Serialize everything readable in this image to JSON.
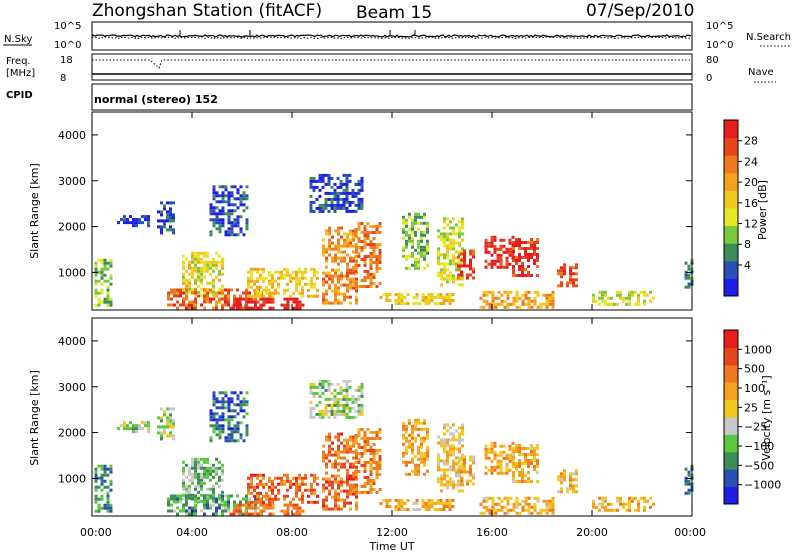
{
  "header": {
    "station": "Zhongshan Station (fitACF)",
    "beam": "Beam 15",
    "date": "07/Sep/2010"
  },
  "top_panels": {
    "nsky_label": "N.Sky",
    "nsearch_label": "N.Search",
    "nsky_ticks": [
      "10^5",
      "10^0"
    ],
    "nsearch_ticks": [
      "10^5",
      "10^0"
    ],
    "freq_label_1": "Freq.",
    "freq_label_2": "[MHz]",
    "freq_ticks": [
      "18",
      "8"
    ],
    "nave_label": "Nave",
    "nave_ticks": [
      "80",
      "0"
    ],
    "cpid_label": "CPID",
    "cpid_value": "normal (stereo) 152"
  },
  "chart_data": [
    {
      "type": "heatmap",
      "name": "power",
      "ylabel": "Slant Range [km]",
      "xlabel": "",
      "ylim": [
        180,
        4500
      ],
      "xlim": [
        0,
        24
      ],
      "yticks": [
        "1000",
        "2000",
        "3000",
        "4000"
      ],
      "ytick_values": [
        1000,
        2000,
        3000,
        4000
      ],
      "colorbar_label": "Power [dB]",
      "colorbar_ticks": [
        "4",
        "8",
        "12",
        "16",
        "20",
        "24",
        "28"
      ],
      "colorbar_colors": [
        "#1e1ee6",
        "#2850b4",
        "#3c8c5a",
        "#7ac83c",
        "#e6e628",
        "#f0c81e",
        "#f5a01e",
        "#f0781e",
        "#e6461e",
        "#e61e1e"
      ],
      "blobs": [
        {
          "t0": 0.1,
          "t1": 0.8,
          "r0": 300,
          "r1": 1300,
          "level": 0.35
        },
        {
          "t0": 1.0,
          "t1": 2.3,
          "r0": 2000,
          "r1": 2250,
          "level": 0.1
        },
        {
          "t0": 2.6,
          "t1": 3.3,
          "r0": 1850,
          "r1": 2550,
          "level": 0.12
        },
        {
          "t0": 3.6,
          "t1": 5.2,
          "r0": 500,
          "r1": 1450,
          "level": 0.5
        },
        {
          "t0": 3.0,
          "t1": 6.8,
          "r0": 250,
          "r1": 650,
          "level": 0.8
        },
        {
          "t0": 4.7,
          "t1": 6.2,
          "r0": 1800,
          "r1": 2900,
          "level": 0.15
        },
        {
          "t0": 5.5,
          "t1": 8.5,
          "r0": 200,
          "r1": 450,
          "level": 0.95
        },
        {
          "t0": 6.2,
          "t1": 9.0,
          "r0": 450,
          "r1": 1100,
          "level": 0.55
        },
        {
          "t0": 8.7,
          "t1": 10.8,
          "r0": 2300,
          "r1": 3150,
          "level": 0.12
        },
        {
          "t0": 9.2,
          "t1": 10.6,
          "r0": 300,
          "r1": 2000,
          "level": 0.7
        },
        {
          "t0": 10.5,
          "t1": 11.5,
          "r0": 700,
          "r1": 2100,
          "level": 0.75
        },
        {
          "t0": 11.5,
          "t1": 14.5,
          "r0": 300,
          "r1": 550,
          "level": 0.55
        },
        {
          "t0": 12.4,
          "t1": 13.4,
          "r0": 1100,
          "r1": 2300,
          "level": 0.35
        },
        {
          "t0": 13.8,
          "t1": 14.8,
          "r0": 700,
          "r1": 2200,
          "level": 0.45
        },
        {
          "t0": 14.6,
          "t1": 15.2,
          "r0": 850,
          "r1": 1500,
          "level": 0.9
        },
        {
          "t0": 15.7,
          "t1": 16.8,
          "r0": 1100,
          "r1": 1800,
          "level": 0.95
        },
        {
          "t0": 16.8,
          "t1": 17.8,
          "r0": 950,
          "r1": 1750,
          "level": 0.9
        },
        {
          "t0": 15.5,
          "t1": 18.5,
          "r0": 250,
          "r1": 600,
          "level": 0.65
        },
        {
          "t0": 18.6,
          "t1": 19.4,
          "r0": 700,
          "r1": 1200,
          "level": 0.85
        },
        {
          "t0": 20.0,
          "t1": 22.5,
          "r0": 300,
          "r1": 600,
          "level": 0.45
        },
        {
          "t0": 23.7,
          "t1": 24.0,
          "r0": 700,
          "r1": 1300,
          "level": 0.3
        }
      ]
    },
    {
      "type": "heatmap",
      "name": "velocity",
      "ylabel": "Slant Range [km]",
      "xlabel": "Time UT",
      "ylim": [
        180,
        4500
      ],
      "xlim": [
        0,
        24
      ],
      "yticks": [
        "1000",
        "2000",
        "3000",
        "4000"
      ],
      "ytick_values": [
        1000,
        2000,
        3000,
        4000
      ],
      "xticks": [
        "00:00",
        "04:00",
        "08:00",
        "12:00",
        "16:00",
        "20:00",
        "00:00"
      ],
      "xtick_values": [
        0,
        4,
        8,
        12,
        16,
        20,
        24
      ],
      "colorbar_label": "Velocity [m s⁻¹]",
      "colorbar_ticks": [
        "1000",
        "500",
        "100",
        "25",
        "−25",
        "−100",
        "−500",
        "−1000"
      ],
      "colorbar_colors": [
        "#1e1ee6",
        "#2850b4",
        "#3c8c5a",
        "#5ac83c",
        "#c8c8c8",
        "#f0c81e",
        "#f5a01e",
        "#f0781e",
        "#e6461e",
        "#e61e1e"
      ],
      "blobs": [
        {
          "t0": 0.1,
          "t1": 0.8,
          "r0": 300,
          "r1": 1300,
          "level": 0.25
        },
        {
          "t0": 1.0,
          "t1": 2.3,
          "r0": 2000,
          "r1": 2250,
          "level": 0.42
        },
        {
          "t0": 2.6,
          "t1": 3.3,
          "r0": 1850,
          "r1": 2550,
          "level": 0.42
        },
        {
          "t0": 3.6,
          "t1": 5.2,
          "r0": 500,
          "r1": 1450,
          "level": 0.35
        },
        {
          "t0": 3.0,
          "t1": 6.8,
          "r0": 250,
          "r1": 650,
          "level": 0.3
        },
        {
          "t0": 4.7,
          "t1": 6.2,
          "r0": 1800,
          "r1": 2900,
          "level": 0.2
        },
        {
          "t0": 5.5,
          "t1": 8.5,
          "r0": 200,
          "r1": 450,
          "level": 0.75
        },
        {
          "t0": 6.2,
          "t1": 9.0,
          "r0": 450,
          "r1": 1100,
          "level": 0.8
        },
        {
          "t0": 8.7,
          "t1": 10.8,
          "r0": 2300,
          "r1": 3150,
          "level": 0.42
        },
        {
          "t0": 9.2,
          "t1": 10.6,
          "r0": 300,
          "r1": 2000,
          "level": 0.78
        },
        {
          "t0": 10.5,
          "t1": 11.5,
          "r0": 700,
          "r1": 2100,
          "level": 0.72
        },
        {
          "t0": 11.5,
          "t1": 14.5,
          "r0": 300,
          "r1": 550,
          "level": 0.62
        },
        {
          "t0": 12.4,
          "t1": 13.4,
          "r0": 1100,
          "r1": 2300,
          "level": 0.65
        },
        {
          "t0": 13.8,
          "t1": 14.8,
          "r0": 700,
          "r1": 2200,
          "level": 0.55
        },
        {
          "t0": 14.6,
          "t1": 15.2,
          "r0": 850,
          "r1": 1500,
          "level": 0.6
        },
        {
          "t0": 15.7,
          "t1": 16.8,
          "r0": 1100,
          "r1": 1800,
          "level": 0.65
        },
        {
          "t0": 16.8,
          "t1": 17.8,
          "r0": 950,
          "r1": 1750,
          "level": 0.62
        },
        {
          "t0": 15.5,
          "t1": 18.5,
          "r0": 250,
          "r1": 600,
          "level": 0.62
        },
        {
          "t0": 18.6,
          "t1": 19.4,
          "r0": 700,
          "r1": 1200,
          "level": 0.6
        },
        {
          "t0": 20.0,
          "t1": 22.5,
          "r0": 300,
          "r1": 600,
          "level": 0.62
        },
        {
          "t0": 23.7,
          "t1": 24.0,
          "r0": 700,
          "r1": 1300,
          "level": 0.25
        }
      ]
    }
  ]
}
